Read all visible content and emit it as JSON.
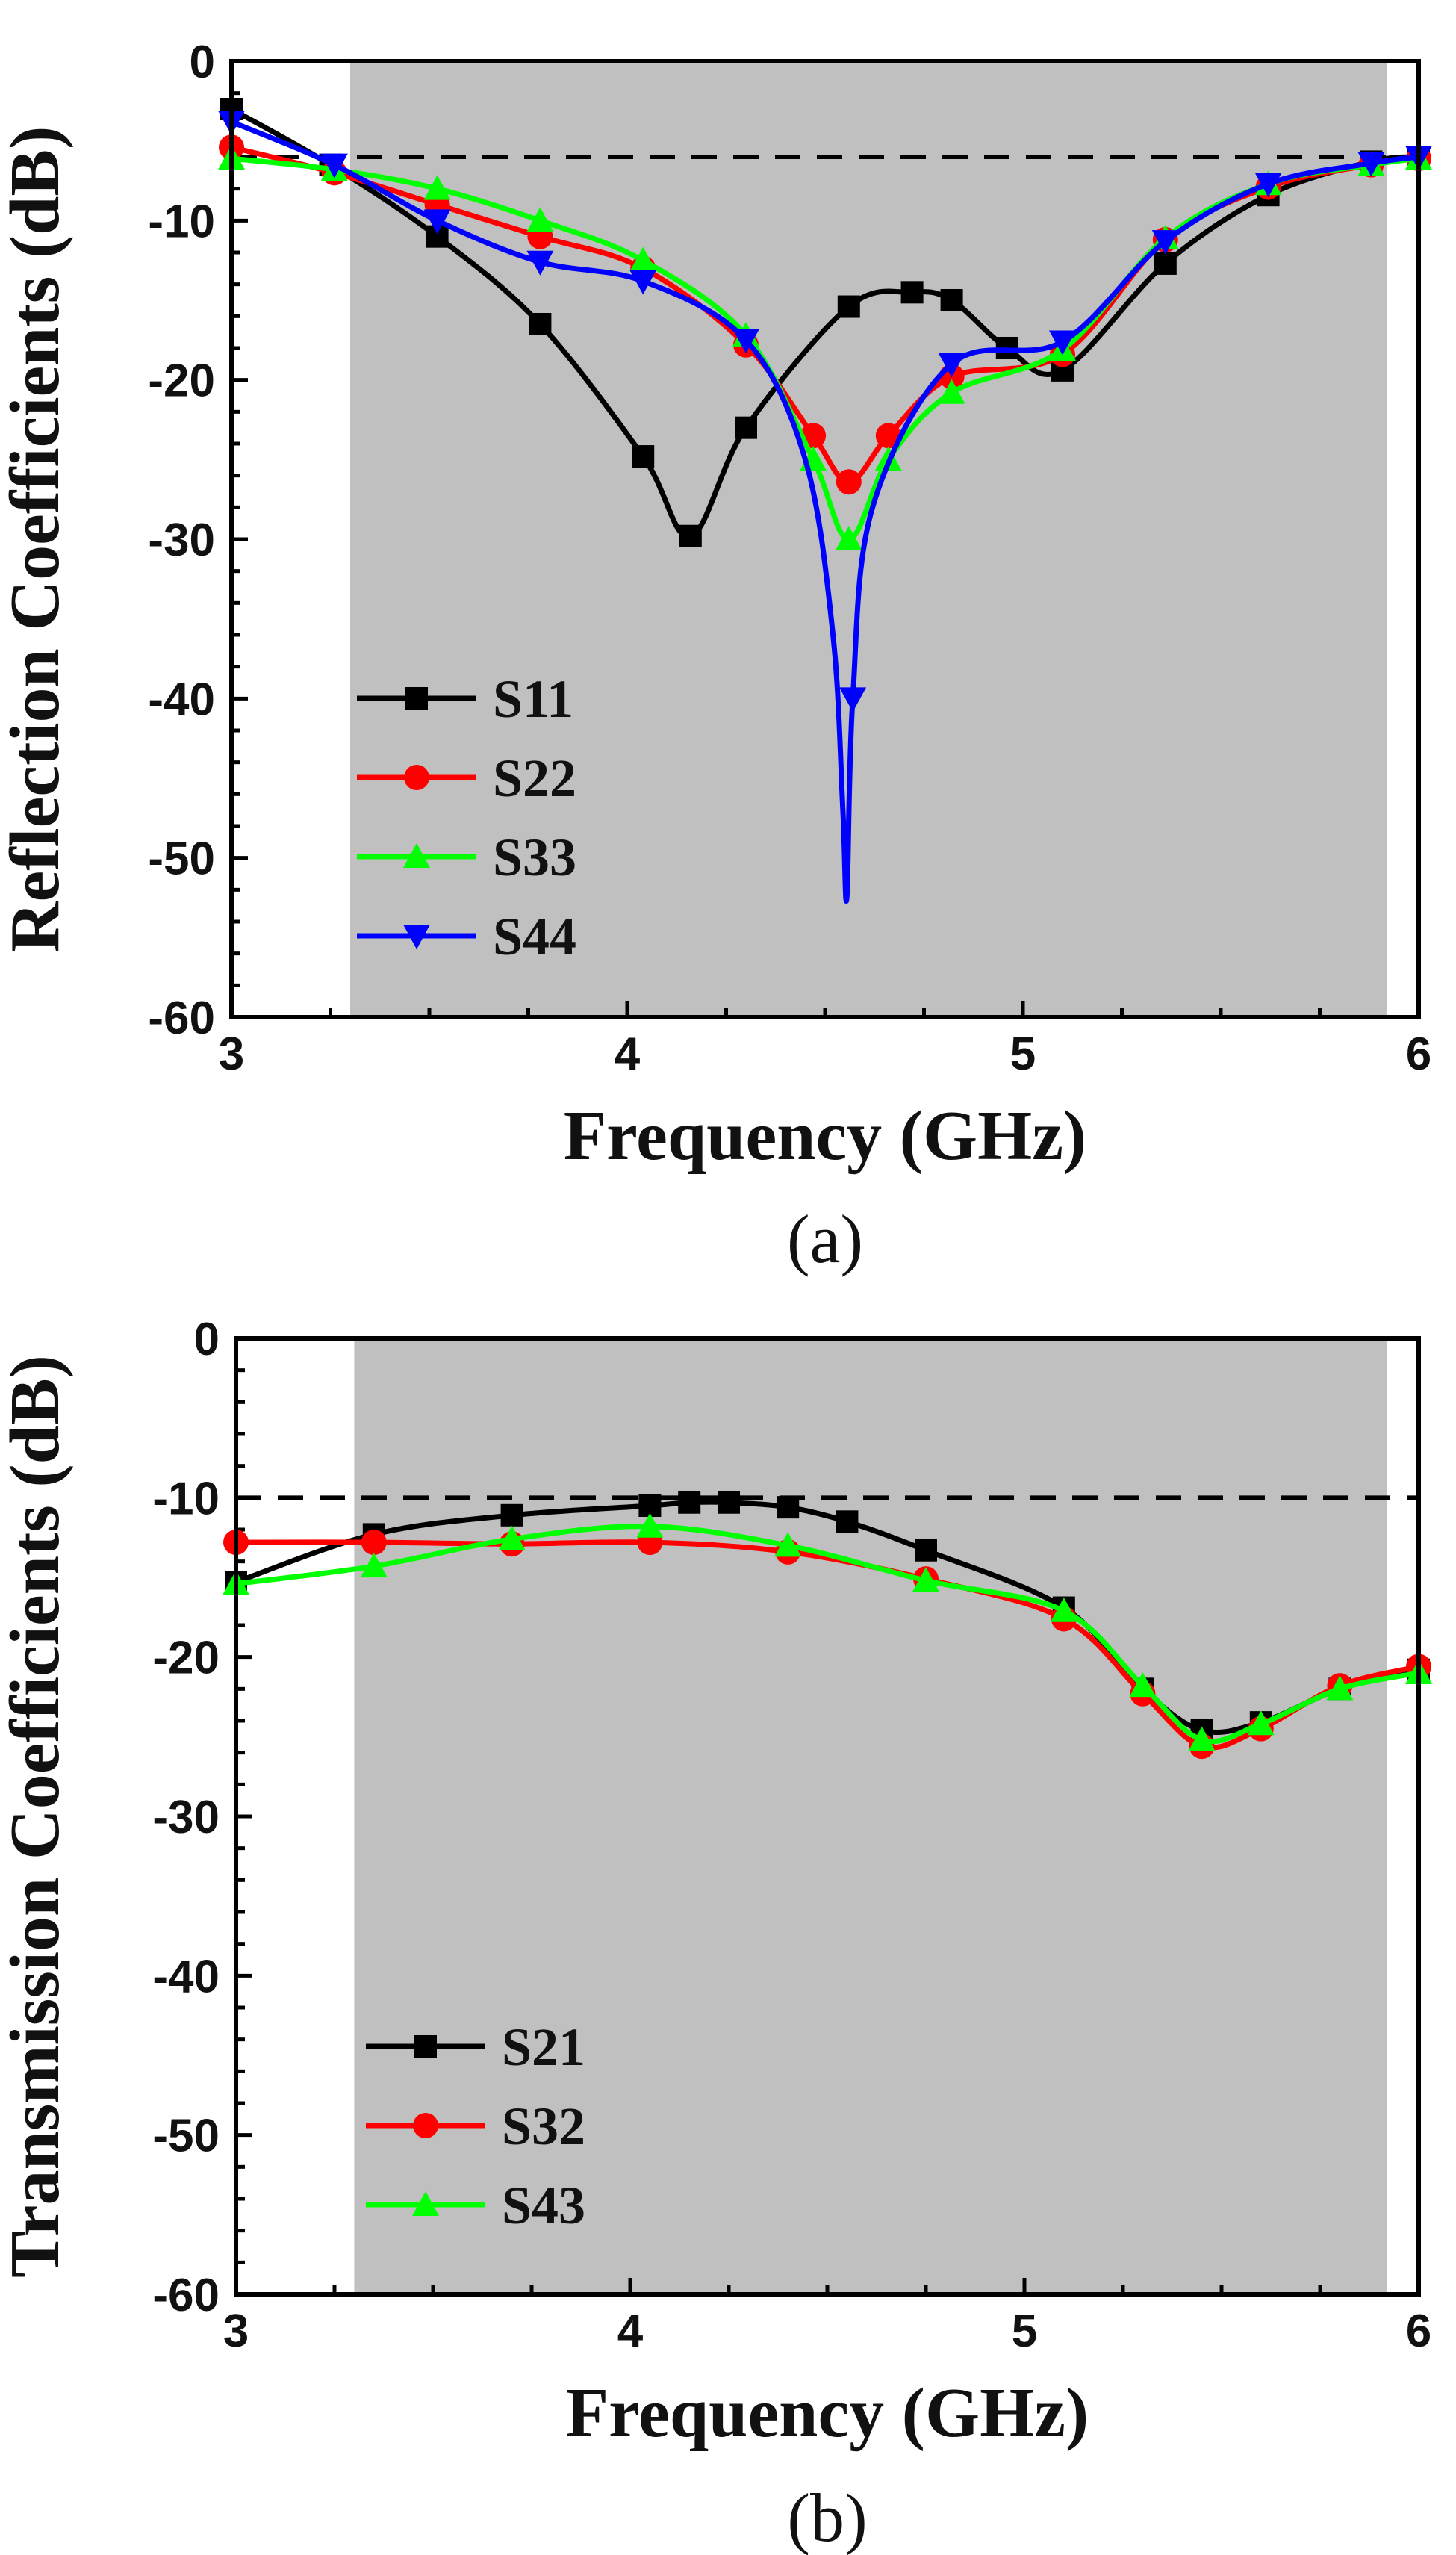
{
  "chart_data": [
    {
      "type": "line",
      "caption": "(a)",
      "xlabel": "Frequency (GHz)",
      "ylabel": "Reflection Coefficients (dB)",
      "xlim": [
        3,
        6
      ],
      "ylim": [
        -60,
        0
      ],
      "x_ticks": [
        3,
        4,
        5,
        6
      ],
      "y_ticks": [
        0,
        -10,
        -20,
        -30,
        -40,
        -50,
        -60
      ],
      "shaded_band": [
        3.3,
        5.92
      ],
      "reference_line": -6,
      "legend_position": "bottom-left",
      "series": [
        {
          "name": "S11",
          "color": "#000000",
          "marker": "square",
          "x": [
            3.0,
            3.25,
            3.52,
            3.78,
            4.04,
            4.16,
            4.3,
            4.56,
            4.72,
            4.82,
            4.96,
            5.1,
            5.36,
            5.62,
            5.88,
            6.0
          ],
          "y": [
            -3,
            -6.5,
            -11,
            -16.5,
            -24.8,
            -29.8,
            -23,
            -15.4,
            -14.5,
            -15,
            -18,
            -19.4,
            -12.7,
            -8.4,
            -6.3,
            -6
          ]
        },
        {
          "name": "S22",
          "color": "#ff0000",
          "marker": "circle",
          "x": [
            3.0,
            3.26,
            3.52,
            3.78,
            4.04,
            4.3,
            4.47,
            4.56,
            4.66,
            4.82,
            5.1,
            5.36,
            5.62,
            5.88,
            6.0
          ],
          "y": [
            -5.4,
            -7,
            -9,
            -11,
            -13,
            -17.8,
            -23.5,
            -26.4,
            -23.5,
            -19.8,
            -18.4,
            -11.2,
            -7.9,
            -6.5,
            -6.1
          ]
        },
        {
          "name": "S33",
          "color": "#00ff00",
          "marker": "triangle-up",
          "x": [
            3.0,
            3.26,
            3.52,
            3.78,
            4.04,
            4.3,
            4.47,
            4.56,
            4.66,
            4.82,
            5.1,
            5.36,
            5.62,
            5.88,
            6.0
          ],
          "y": [
            -6.1,
            -6.8,
            -8,
            -10,
            -12.5,
            -17.2,
            -25,
            -30,
            -25,
            -20.8,
            -18.1,
            -11.1,
            -7.7,
            -6.5,
            -6.1
          ]
        },
        {
          "name": "S44",
          "color": "#0000ff",
          "marker": "triangle-down",
          "x": [
            3.0,
            3.26,
            3.52,
            3.78,
            4.04,
            4.3,
            4.45,
            4.52,
            4.545,
            4.555,
            4.57,
            4.62,
            4.82,
            5.1,
            5.36,
            5.62,
            5.88,
            6.0
          ],
          "y": [
            -3.8,
            -6.5,
            -10,
            -12.6,
            -13.8,
            -17.5,
            -25,
            -36,
            -47,
            -52.5,
            -40,
            -28,
            -19,
            -17.6,
            -11.3,
            -7.7,
            -6.4,
            -6
          ]
        }
      ]
    },
    {
      "type": "line",
      "caption": "(b)",
      "xlabel": "Frequency (GHz)",
      "ylabel": "Transmission Coefficients (dB)",
      "xlim": [
        3,
        6
      ],
      "ylim": [
        -60,
        0
      ],
      "x_ticks": [
        3,
        4,
        5,
        6
      ],
      "y_ticks": [
        0,
        -10,
        -20,
        -30,
        -40,
        -50,
        -60
      ],
      "shaded_band": [
        3.3,
        5.92
      ],
      "reference_line": -10,
      "legend_position": "bottom-left",
      "series": [
        {
          "name": "S21",
          "color": "#000000",
          "marker": "square",
          "x": [
            3.0,
            3.35,
            3.7,
            4.05,
            4.15,
            4.25,
            4.4,
            4.55,
            4.75,
            5.1,
            5.3,
            5.45,
            5.6,
            5.8,
            6.0
          ],
          "y": [
            -15.3,
            -12.3,
            -11.1,
            -10.5,
            -10.3,
            -10.3,
            -10.6,
            -11.5,
            -13.3,
            -16.9,
            -22,
            -24.6,
            -24.1,
            -22,
            -20.8
          ]
        },
        {
          "name": "S32",
          "color": "#ff0000",
          "marker": "circle",
          "x": [
            3.0,
            3.35,
            3.7,
            4.05,
            4.4,
            4.75,
            5.1,
            5.3,
            5.45,
            5.6,
            5.8,
            6.0
          ],
          "y": [
            -12.8,
            -12.8,
            -12.9,
            -12.8,
            -13.4,
            -15.1,
            -17.6,
            -22.3,
            -25.6,
            -24.5,
            -21.8,
            -20.6
          ]
        },
        {
          "name": "S43",
          "color": "#00ff00",
          "marker": "triangle-up",
          "x": [
            3.0,
            3.35,
            3.7,
            4.05,
            4.4,
            4.75,
            5.1,
            5.3,
            5.45,
            5.6,
            5.8,
            6.0
          ],
          "y": [
            -15.4,
            -14.3,
            -12.6,
            -11.8,
            -13,
            -15.2,
            -17.1,
            -21.8,
            -25.2,
            -24.2,
            -22,
            -21
          ]
        }
      ]
    }
  ]
}
